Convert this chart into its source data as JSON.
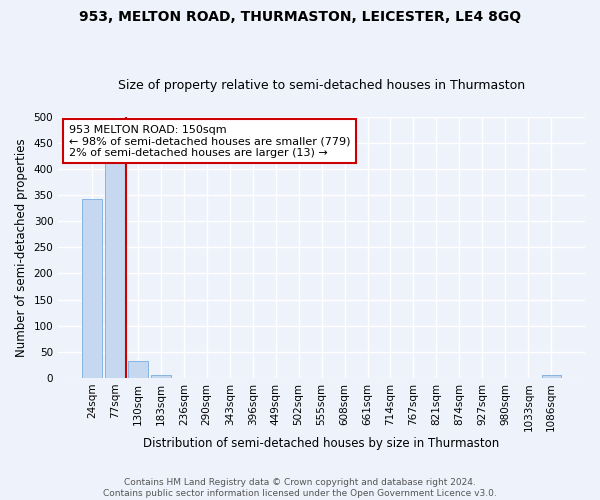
{
  "title": "953, MELTON ROAD, THURMASTON, LEICESTER, LE4 8GQ",
  "subtitle": "Size of property relative to semi-detached houses in Thurmaston",
  "xlabel": "Distribution of semi-detached houses by size in Thurmaston",
  "ylabel": "Number of semi-detached properties",
  "bin_labels": [
    "24sqm",
    "77sqm",
    "130sqm",
    "183sqm",
    "236sqm",
    "290sqm",
    "343sqm",
    "396sqm",
    "449sqm",
    "502sqm",
    "555sqm",
    "608sqm",
    "661sqm",
    "714sqm",
    "767sqm",
    "821sqm",
    "874sqm",
    "927sqm",
    "980sqm",
    "1033sqm",
    "1086sqm"
  ],
  "bar_values": [
    342,
    418,
    33,
    6,
    0,
    0,
    0,
    0,
    0,
    0,
    0,
    0,
    0,
    0,
    0,
    0,
    0,
    0,
    0,
    0,
    5
  ],
  "bar_color_blue": "#c5d8f0",
  "bar_edge_color": "#7aace0",
  "property_bin_index": 2,
  "property_size": "150sqm",
  "annotation_text_line1": "953 MELTON ROAD: 150sqm",
  "annotation_text_line2": "← 98% of semi-detached houses are smaller (779)",
  "annotation_text_line3": "2% of semi-detached houses are larger (13) →",
  "vline_color": "#cc0000",
  "ylim": [
    0,
    500
  ],
  "yticks": [
    0,
    50,
    100,
    150,
    200,
    250,
    300,
    350,
    400,
    450,
    500
  ],
  "background_color": "#eef2fa",
  "grid_color": "#ffffff",
  "annotation_box_edge_color": "#cc0000",
  "annotation_box_face_color": "#ffffff",
  "title_fontsize": 10,
  "subtitle_fontsize": 9,
  "label_fontsize": 8.5,
  "tick_fontsize": 7.5,
  "annotation_fontsize": 8,
  "footer_fontsize": 6.5,
  "footer_line1": "Contains HM Land Registry data © Crown copyright and database right 2024.",
  "footer_line2": "Contains public sector information licensed under the Open Government Licence v3.0."
}
